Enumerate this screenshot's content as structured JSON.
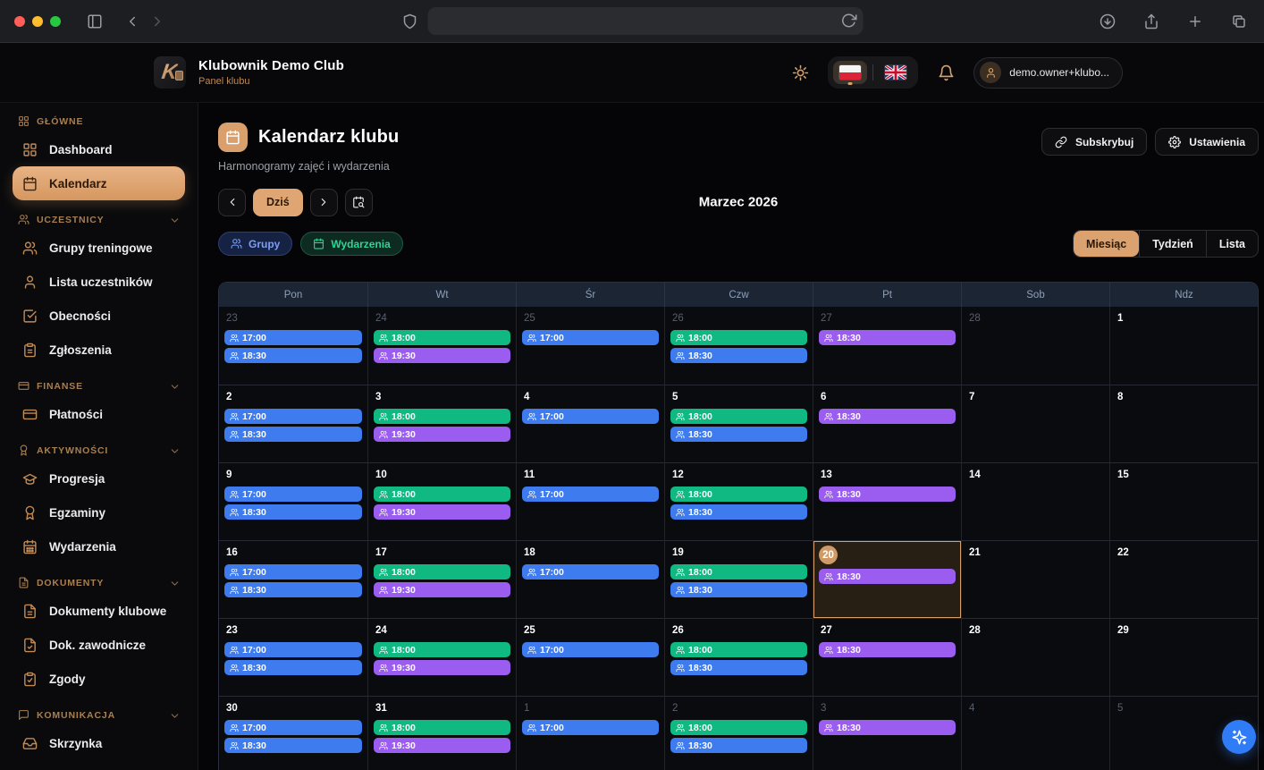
{
  "colors": {
    "accent": "#dfa673",
    "event_blue": "#3d7bef",
    "event_green": "#10b981",
    "event_purple": "#9b5df0",
    "fab_blue": "#2f7cf6",
    "traffic_red": "#ff5f57",
    "traffic_yellow": "#febc2e",
    "traffic_green": "#28c840"
  },
  "browser": {
    "address_value": "",
    "icons": [
      "panel-left",
      "chevron-left",
      "chevron-right",
      "shield",
      "refresh",
      "download",
      "share",
      "plus",
      "tabs"
    ]
  },
  "header": {
    "club_name": "Klubownik Demo Club",
    "club_subtitle": "Panel klubu",
    "user_email": "demo.owner+klubo...",
    "icons": [
      "sun",
      "bell",
      "user"
    ],
    "languages": [
      {
        "name": "polish-flag",
        "active": true
      },
      {
        "name": "uk-flag",
        "active": false
      }
    ]
  },
  "sidebar": {
    "sections": [
      {
        "label": "GŁÓWNE",
        "icon": "layout-grid",
        "chevron": false,
        "items": [
          {
            "label": "Dashboard",
            "icon": "layout-grid",
            "active": false
          },
          {
            "label": "Kalendarz",
            "icon": "calendar",
            "active": true
          }
        ]
      },
      {
        "label": "UCZESTNICY",
        "icon": "users",
        "chevron": true,
        "items": [
          {
            "label": "Grupy treningowe",
            "icon": "users",
            "active": false
          },
          {
            "label": "Lista uczestników",
            "icon": "user",
            "active": false
          },
          {
            "label": "Obecności",
            "icon": "check-square",
            "active": false
          },
          {
            "label": "Zgłoszenia",
            "icon": "clipboard-list",
            "active": false
          }
        ]
      },
      {
        "label": "FINANSE",
        "icon": "credit-card",
        "chevron": true,
        "items": [
          {
            "label": "Płatności",
            "icon": "credit-card",
            "active": false
          }
        ]
      },
      {
        "label": "AKTYWNOŚCI",
        "icon": "award",
        "chevron": true,
        "items": [
          {
            "label": "Progresja",
            "icon": "graduation-cap",
            "active": false
          },
          {
            "label": "Egzaminy",
            "icon": "award",
            "active": false
          },
          {
            "label": "Wydarzenia",
            "icon": "calendar-days",
            "active": false
          }
        ]
      },
      {
        "label": "DOKUMENTY",
        "icon": "file-text",
        "chevron": true,
        "items": [
          {
            "label": "Dokumenty klubowe",
            "icon": "file-text",
            "active": false
          },
          {
            "label": "Dok. zawodnicze",
            "icon": "file-check",
            "active": false
          },
          {
            "label": "Zgody",
            "icon": "clipboard-check",
            "active": false
          }
        ]
      },
      {
        "label": "KOMUNIKACJA",
        "icon": "message-square",
        "chevron": true,
        "items": [
          {
            "label": "Skrzynka",
            "icon": "inbox",
            "active": false
          }
        ]
      }
    ]
  },
  "page": {
    "title": "Kalendarz klubu",
    "subtitle": "Harmonogramy zajęć i wydarzenia",
    "actions": {
      "subscribe": "Subskrybuj",
      "settings": "Ustawienia"
    },
    "toolbar": {
      "today": "Dziś",
      "month_title": "Marzec 2026"
    },
    "filters": [
      {
        "label": "Grupy",
        "color": "blue",
        "icon": "users"
      },
      {
        "label": "Wydarzenia",
        "color": "green",
        "icon": "calendar"
      }
    ],
    "views": [
      {
        "label": "Miesiąc",
        "active": true
      },
      {
        "label": "Tydzień",
        "active": false
      },
      {
        "label": "Lista",
        "active": false
      }
    ]
  },
  "calendar": {
    "weekdays": [
      "Pon",
      "Wt",
      "Śr",
      "Czw",
      "Pt",
      "Sob",
      "Ndz"
    ],
    "weeks": [
      [
        {
          "day": "23",
          "out": true,
          "events": [
            {
              "time": "17:00",
              "color": "blue"
            },
            {
              "time": "18:30",
              "color": "blue"
            }
          ]
        },
        {
          "day": "24",
          "out": true,
          "events": [
            {
              "time": "18:00",
              "color": "green"
            },
            {
              "time": "19:30",
              "color": "purple"
            }
          ]
        },
        {
          "day": "25",
          "out": true,
          "events": [
            {
              "time": "17:00",
              "color": "blue"
            }
          ]
        },
        {
          "day": "26",
          "out": true,
          "events": [
            {
              "time": "18:00",
              "color": "green"
            },
            {
              "time": "18:30",
              "color": "blue"
            }
          ]
        },
        {
          "day": "27",
          "out": true,
          "events": [
            {
              "time": "18:30",
              "color": "purple"
            }
          ]
        },
        {
          "day": "28",
          "out": true,
          "events": []
        },
        {
          "day": "1",
          "out": false,
          "events": []
        }
      ],
      [
        {
          "day": "2",
          "out": false,
          "events": [
            {
              "time": "17:00",
              "color": "blue"
            },
            {
              "time": "18:30",
              "color": "blue"
            }
          ]
        },
        {
          "day": "3",
          "out": false,
          "events": [
            {
              "time": "18:00",
              "color": "green"
            },
            {
              "time": "19:30",
              "color": "purple"
            }
          ]
        },
        {
          "day": "4",
          "out": false,
          "events": [
            {
              "time": "17:00",
              "color": "blue"
            }
          ]
        },
        {
          "day": "5",
          "out": false,
          "events": [
            {
              "time": "18:00",
              "color": "green"
            },
            {
              "time": "18:30",
              "color": "blue"
            }
          ]
        },
        {
          "day": "6",
          "out": false,
          "events": [
            {
              "time": "18:30",
              "color": "purple"
            }
          ]
        },
        {
          "day": "7",
          "out": false,
          "events": []
        },
        {
          "day": "8",
          "out": false,
          "events": []
        }
      ],
      [
        {
          "day": "9",
          "out": false,
          "events": [
            {
              "time": "17:00",
              "color": "blue"
            },
            {
              "time": "18:30",
              "color": "blue"
            }
          ]
        },
        {
          "day": "10",
          "out": false,
          "events": [
            {
              "time": "18:00",
              "color": "green"
            },
            {
              "time": "19:30",
              "color": "purple"
            }
          ]
        },
        {
          "day": "11",
          "out": false,
          "events": [
            {
              "time": "17:00",
              "color": "blue"
            }
          ]
        },
        {
          "day": "12",
          "out": false,
          "events": [
            {
              "time": "18:00",
              "color": "green"
            },
            {
              "time": "18:30",
              "color": "blue"
            }
          ]
        },
        {
          "day": "13",
          "out": false,
          "events": [
            {
              "time": "18:30",
              "color": "purple"
            }
          ]
        },
        {
          "day": "14",
          "out": false,
          "events": []
        },
        {
          "day": "15",
          "out": false,
          "events": []
        }
      ],
      [
        {
          "day": "16",
          "out": false,
          "events": [
            {
              "time": "17:00",
              "color": "blue"
            },
            {
              "time": "18:30",
              "color": "blue"
            }
          ]
        },
        {
          "day": "17",
          "out": false,
          "events": [
            {
              "time": "18:00",
              "color": "green"
            },
            {
              "time": "19:30",
              "color": "purple"
            }
          ]
        },
        {
          "day": "18",
          "out": false,
          "events": [
            {
              "time": "17:00",
              "color": "blue"
            }
          ]
        },
        {
          "day": "19",
          "out": false,
          "events": [
            {
              "time": "18:00",
              "color": "green"
            },
            {
              "time": "18:30",
              "color": "blue"
            }
          ]
        },
        {
          "day": "20",
          "out": false,
          "today": true,
          "events": [
            {
              "time": "18:30",
              "color": "purple"
            }
          ]
        },
        {
          "day": "21",
          "out": false,
          "events": []
        },
        {
          "day": "22",
          "out": false,
          "events": []
        }
      ],
      [
        {
          "day": "23",
          "out": false,
          "events": [
            {
              "time": "17:00",
              "color": "blue"
            },
            {
              "time": "18:30",
              "color": "blue"
            }
          ]
        },
        {
          "day": "24",
          "out": false,
          "events": [
            {
              "time": "18:00",
              "color": "green"
            },
            {
              "time": "19:30",
              "color": "purple"
            }
          ]
        },
        {
          "day": "25",
          "out": false,
          "events": [
            {
              "time": "17:00",
              "color": "blue"
            }
          ]
        },
        {
          "day": "26",
          "out": false,
          "events": [
            {
              "time": "18:00",
              "color": "green"
            },
            {
              "time": "18:30",
              "color": "blue"
            }
          ]
        },
        {
          "day": "27",
          "out": false,
          "events": [
            {
              "time": "18:30",
              "color": "purple"
            }
          ]
        },
        {
          "day": "28",
          "out": false,
          "events": []
        },
        {
          "day": "29",
          "out": false,
          "events": []
        }
      ],
      [
        {
          "day": "30",
          "out": false,
          "events": [
            {
              "time": "17:00",
              "color": "blue"
            },
            {
              "time": "18:30",
              "color": "blue"
            }
          ]
        },
        {
          "day": "31",
          "out": false,
          "events": [
            {
              "time": "18:00",
              "color": "green"
            },
            {
              "time": "19:30",
              "color": "purple"
            }
          ]
        },
        {
          "day": "1",
          "out": true,
          "events": [
            {
              "time": "17:00",
              "color": "blue"
            }
          ]
        },
        {
          "day": "2",
          "out": true,
          "events": [
            {
              "time": "18:00",
              "color": "green"
            },
            {
              "time": "18:30",
              "color": "blue"
            }
          ]
        },
        {
          "day": "3",
          "out": true,
          "events": [
            {
              "time": "18:30",
              "color": "purple"
            }
          ]
        },
        {
          "day": "4",
          "out": true,
          "events": []
        },
        {
          "day": "5",
          "out": true,
          "events": []
        }
      ]
    ]
  },
  "fab": {
    "icon": "sparkles"
  }
}
